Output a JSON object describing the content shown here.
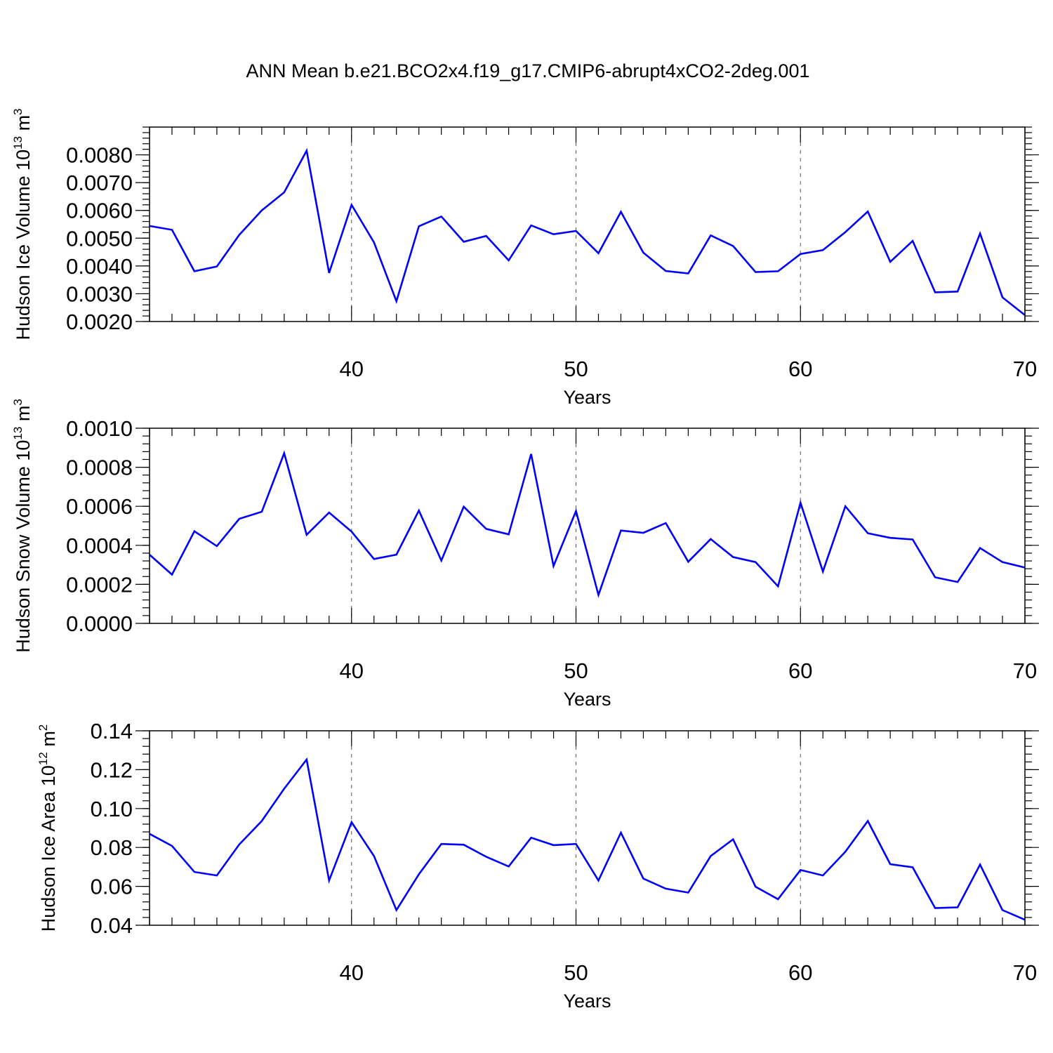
{
  "title": "ANN Mean b.e21.BCO2x4.f19_g17.CMIP6-abrupt4xCO2-2deg.001",
  "colors": {
    "line": "#0000ff",
    "axis": "#000000",
    "grid": "#555555"
  },
  "chart_data": [
    {
      "type": "line",
      "ylabel": "Hudson Ice Volume 10",
      "ylabel_exp": "13",
      "ylabel_unit": " m",
      "ylabel_unit_exp": "3",
      "xlabel": "Years",
      "xlim": [
        31,
        70
      ],
      "ylim": [
        0.002,
        0.009
      ],
      "yticks": [
        0.002,
        0.003,
        0.004,
        0.005,
        0.006,
        0.007,
        0.008
      ],
      "ytick_labels": [
        "0.0020",
        "0.0030",
        "0.0040",
        "0.0050",
        "0.0060",
        "0.0070",
        "0.0080"
      ],
      "yminor": 0.0002,
      "xticks": [
        40,
        50,
        60,
        70
      ],
      "xtick_labels": [
        "40",
        "50",
        "60",
        "70"
      ],
      "grid_x": [
        40,
        50,
        60
      ],
      "x": [
        31,
        32,
        33,
        34,
        35,
        36,
        37,
        38,
        39,
        40,
        41,
        42,
        43,
        44,
        45,
        46,
        47,
        48,
        49,
        50,
        51,
        52,
        53,
        54,
        55,
        56,
        57,
        58,
        59,
        60,
        61,
        62,
        63,
        64,
        65,
        66,
        67,
        68,
        69,
        70
      ],
      "values": [
        0.00544,
        0.0053,
        0.00381,
        0.00398,
        0.00512,
        0.006,
        0.00665,
        0.00815,
        0.00375,
        0.0062,
        0.00485,
        0.00273,
        0.00543,
        0.00578,
        0.00487,
        0.00508,
        0.0042,
        0.00546,
        0.00514,
        0.00526,
        0.00446,
        0.00595,
        0.00448,
        0.00382,
        0.00373,
        0.0051,
        0.00472,
        0.00378,
        0.00381,
        0.00443,
        0.00457,
        0.00522,
        0.00596,
        0.00415,
        0.0049,
        0.00305,
        0.00308,
        0.00517,
        0.00287,
        0.00223
      ]
    },
    {
      "type": "line",
      "ylabel": "Hudson Snow Volume 10",
      "ylabel_exp": "13",
      "ylabel_unit": " m",
      "ylabel_unit_exp": "3",
      "xlabel": "Years",
      "xlim": [
        31,
        70
      ],
      "ylim": [
        0.0,
        0.001
      ],
      "yticks": [
        0.0,
        0.0002,
        0.0004,
        0.0006,
        0.0008,
        0.001
      ],
      "ytick_labels": [
        "0.0000",
        "0.0002",
        "0.0004",
        "0.0006",
        "0.0008",
        "0.0010"
      ],
      "yminor": 4e-05,
      "xticks": [
        40,
        50,
        60,
        70
      ],
      "xtick_labels": [
        "40",
        "50",
        "60",
        "70"
      ],
      "grid_x": [
        40,
        50,
        60
      ],
      "x": [
        31,
        32,
        33,
        34,
        35,
        36,
        37,
        38,
        39,
        40,
        41,
        42,
        43,
        44,
        45,
        46,
        47,
        48,
        49,
        50,
        51,
        52,
        53,
        54,
        55,
        56,
        57,
        58,
        59,
        60,
        61,
        62,
        63,
        64,
        65,
        66,
        67,
        68,
        69,
        70
      ],
      "values": [
        0.000352,
        0.00025,
        0.000472,
        0.000396,
        0.000536,
        0.000572,
        0.000872,
        0.000454,
        0.000568,
        0.00047,
        0.00033,
        0.000352,
        0.000578,
        0.000322,
        0.000598,
        0.000484,
        0.000456,
        0.000868,
        0.000294,
        0.000576,
        0.000146,
        0.000476,
        0.000464,
        0.000514,
        0.000316,
        0.000432,
        0.00034,
        0.000314,
        0.00019,
        0.000618,
        0.000266,
        0.0006,
        0.000462,
        0.000438,
        0.00043,
        0.000236,
        0.000212,
        0.000386,
        0.000314,
        0.000286
      ]
    },
    {
      "type": "line",
      "ylabel": "Hudson Ice Area 10",
      "ylabel_exp": "12",
      "ylabel_unit": " m",
      "ylabel_unit_exp": "2",
      "xlabel": "Years",
      "xlim": [
        31,
        70
      ],
      "ylim": [
        0.04,
        0.14
      ],
      "yticks": [
        0.04,
        0.06,
        0.08,
        0.1,
        0.12,
        0.14
      ],
      "ytick_labels": [
        "0.04",
        "0.06",
        "0.08",
        "0.10",
        "0.12",
        "0.14"
      ],
      "yminor": 0.004,
      "xticks": [
        40,
        50,
        60,
        70
      ],
      "xtick_labels": [
        "40",
        "50",
        "60",
        "70"
      ],
      "grid_x": [
        40,
        50,
        60
      ],
      "x": [
        31,
        32,
        33,
        34,
        35,
        36,
        37,
        38,
        39,
        40,
        41,
        42,
        43,
        44,
        45,
        46,
        47,
        48,
        49,
        50,
        51,
        52,
        53,
        54,
        55,
        56,
        57,
        58,
        59,
        60,
        61,
        62,
        63,
        64,
        65,
        66,
        67,
        68,
        69,
        70
      ],
      "values": [
        0.087,
        0.0808,
        0.0674,
        0.0656,
        0.0816,
        0.0936,
        0.1102,
        0.1252,
        0.063,
        0.093,
        0.0756,
        0.0478,
        0.0662,
        0.0818,
        0.0814,
        0.0752,
        0.0702,
        0.085,
        0.0812,
        0.0818,
        0.063,
        0.0876,
        0.064,
        0.0588,
        0.0568,
        0.0756,
        0.0842,
        0.0598,
        0.0534,
        0.0684,
        0.0656,
        0.0778,
        0.0936,
        0.0714,
        0.0698,
        0.0488,
        0.0492,
        0.0712,
        0.0478,
        0.0428
      ]
    }
  ]
}
